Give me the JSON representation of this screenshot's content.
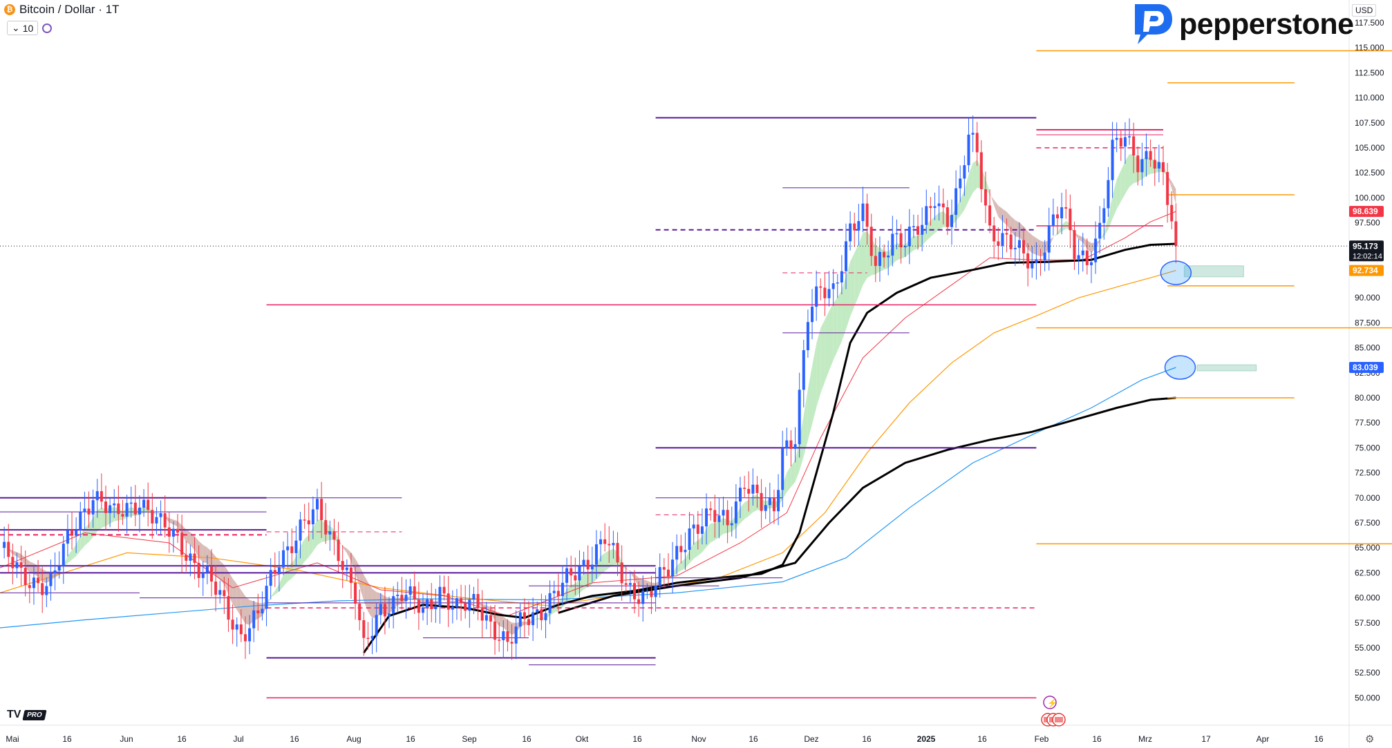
{
  "header": {
    "symbol": "Bitcoin / Dollar · 1T",
    "interval": "10",
    "currency": "USD"
  },
  "brand": {
    "name": "pepperstone",
    "tv_badge": "PRO"
  },
  "colors": {
    "up": "#2962ff",
    "down": "#f23645",
    "ema_fast": "#f23645",
    "ema_mid": "#ff9800",
    "ema_slow": "#2196f3",
    "ema_black": "#000000",
    "ribbon_bull": "#b9e7b9",
    "ribbon_bear": "#d4b0aa",
    "purple": "#5a189a",
    "magenta": "#e91e63",
    "orange": "#ff9800",
    "teal_box": "#cfe8e0"
  },
  "chart_data": {
    "type": "candlestick",
    "x_ticks": [
      "Mai",
      "16",
      "Jun",
      "16",
      "Jul",
      "16",
      "Aug",
      "16",
      "Sep",
      "16",
      "Okt",
      "16",
      "Nov",
      "16",
      "Dez",
      "16",
      "2025",
      "16",
      "Feb",
      "16",
      "Mrz",
      "17",
      "Apr",
      "16"
    ],
    "y_ticks": [
      "117.500",
      "115.000",
      "112.500",
      "110.000",
      "107.500",
      "105.000",
      "102.500",
      "100.000",
      "97.500",
      "95.000",
      "92.500",
      "90.000",
      "87.500",
      "85.000",
      "82.500",
      "80.000",
      "77.500",
      "75.000",
      "72.500",
      "70.000",
      "67.500",
      "65.000",
      "62.500",
      "60.000",
      "57.500",
      "55.000",
      "52.500",
      "50.000"
    ],
    "ylim": [
      48800,
      118800
    ],
    "price_labels": [
      {
        "value": 98639,
        "text": "98.639",
        "color": "#f23645"
      },
      {
        "value": 95173,
        "text": "95.173",
        "sub": "12:02:14",
        "color": "#131722"
      },
      {
        "value": 92734,
        "text": "92.734",
        "color": "#ff9800"
      },
      {
        "value": 83039,
        "text": "83.039",
        "color": "#2962ff"
      }
    ],
    "current_price": 95173,
    "key_points": [
      {
        "day": 0,
        "close": 65000
      },
      {
        "day": 5,
        "close": 62000
      },
      {
        "day": 12,
        "close": 61500
      },
      {
        "day": 18,
        "close": 67500
      },
      {
        "day": 22,
        "close": 70500
      },
      {
        "day": 27,
        "close": 68000
      },
      {
        "day": 33,
        "close": 70000
      },
      {
        "day": 38,
        "close": 67000
      },
      {
        "day": 42,
        "close": 66000
      },
      {
        "day": 47,
        "close": 63000
      },
      {
        "day": 52,
        "close": 60000
      },
      {
        "day": 57,
        "close": 56500
      },
      {
        "day": 61,
        "close": 58000
      },
      {
        "day": 66,
        "close": 64000
      },
      {
        "day": 71,
        "close": 67000
      },
      {
        "day": 75,
        "close": 68500
      },
      {
        "day": 80,
        "close": 65000
      },
      {
        "day": 84,
        "close": 60000
      },
      {
        "day": 86,
        "close": 54500
      },
      {
        "day": 90,
        "close": 59000
      },
      {
        "day": 95,
        "close": 60500
      },
      {
        "day": 100,
        "close": 58500
      },
      {
        "day": 104,
        "close": 61000
      },
      {
        "day": 108,
        "close": 58700
      },
      {
        "day": 113,
        "close": 59500
      },
      {
        "day": 117,
        "close": 57000
      },
      {
        "day": 120,
        "close": 55000
      },
      {
        "day": 124,
        "close": 58000
      },
      {
        "day": 128,
        "close": 59000
      },
      {
        "day": 133,
        "close": 61000
      },
      {
        "day": 138,
        "close": 63500
      },
      {
        "day": 143,
        "close": 66000
      },
      {
        "day": 148,
        "close": 61000
      },
      {
        "day": 153,
        "close": 60500
      },
      {
        "day": 158,
        "close": 62500
      },
      {
        "day": 163,
        "close": 67000
      },
      {
        "day": 168,
        "close": 68000
      },
      {
        "day": 172,
        "close": 67500
      },
      {
        "day": 176,
        "close": 72000
      },
      {
        "day": 180,
        "close": 69000
      },
      {
        "day": 183,
        "close": 68500
      },
      {
        "day": 185,
        "close": 75000
      },
      {
        "day": 188,
        "close": 76500
      },
      {
        "day": 191,
        "close": 88000
      },
      {
        "day": 194,
        "close": 90500
      },
      {
        "day": 197,
        "close": 91000
      },
      {
        "day": 201,
        "close": 97000
      },
      {
        "day": 204,
        "close": 98000
      },
      {
        "day": 207,
        "close": 93000
      },
      {
        "day": 211,
        "close": 96500
      },
      {
        "day": 214,
        "close": 95500
      },
      {
        "day": 218,
        "close": 97000
      },
      {
        "day": 221,
        "close": 100500
      },
      {
        "day": 224,
        "close": 98000
      },
      {
        "day": 227,
        "close": 101000
      },
      {
        "day": 229,
        "close": 106000
      },
      {
        "day": 231,
        "close": 104500
      },
      {
        "day": 234,
        "close": 97000
      },
      {
        "day": 238,
        "close": 95500
      },
      {
        "day": 242,
        "close": 94000
      },
      {
        "day": 245,
        "close": 93500
      },
      {
        "day": 248,
        "close": 97000
      },
      {
        "day": 251,
        "close": 99000
      },
      {
        "day": 254,
        "close": 94500
      },
      {
        "day": 257,
        "close": 94000
      },
      {
        "day": 260,
        "close": 97000
      },
      {
        "day": 263,
        "close": 104500
      },
      {
        "day": 266,
        "close": 106000
      },
      {
        "day": 269,
        "close": 104000
      },
      {
        "day": 272,
        "close": 104500
      },
      {
        "day": 275,
        "close": 101500
      },
      {
        "day": 277,
        "close": 97500
      },
      {
        "day": 278,
        "close": 95200
      }
    ],
    "ema_black_fast": [
      [
        86,
        54500
      ],
      [
        92,
        58200
      ],
      [
        100,
        59300
      ],
      [
        110,
        59000
      ],
      [
        118,
        58300
      ],
      [
        124,
        58000
      ],
      [
        132,
        59300
      ],
      [
        140,
        60200
      ],
      [
        150,
        60700
      ],
      [
        160,
        61500
      ],
      [
        170,
        62000
      ],
      [
        180,
        62400
      ],
      [
        185,
        63300
      ],
      [
        189,
        66500
      ],
      [
        193,
        72500
      ],
      [
        197,
        78500
      ],
      [
        201,
        85500
      ],
      [
        205,
        88500
      ],
      [
        212,
        90500
      ],
      [
        220,
        92000
      ],
      [
        230,
        92800
      ],
      [
        238,
        93500
      ],
      [
        248,
        93600
      ],
      [
        258,
        93800
      ],
      [
        266,
        94800
      ],
      [
        272,
        95300
      ],
      [
        278,
        95400
      ]
    ],
    "ema_black_slow": [
      [
        132,
        58500
      ],
      [
        145,
        60200
      ],
      [
        160,
        61200
      ],
      [
        175,
        62000
      ],
      [
        188,
        63500
      ],
      [
        196,
        67500
      ],
      [
        204,
        71000
      ],
      [
        214,
        73500
      ],
      [
        224,
        74800
      ],
      [
        234,
        75800
      ],
      [
        244,
        76600
      ],
      [
        254,
        77800
      ],
      [
        264,
        79000
      ],
      [
        272,
        79800
      ],
      [
        278,
        80000
      ]
    ],
    "ema_red": [
      [
        0,
        63000
      ],
      [
        20,
        66500
      ],
      [
        40,
        65500
      ],
      [
        55,
        61000
      ],
      [
        75,
        63500
      ],
      [
        90,
        60800
      ],
      [
        105,
        60200
      ],
      [
        120,
        58200
      ],
      [
        140,
        61500
      ],
      [
        160,
        62200
      ],
      [
        175,
        65500
      ],
      [
        186,
        68500
      ],
      [
        194,
        76000
      ],
      [
        204,
        84000
      ],
      [
        214,
        88000
      ],
      [
        224,
        91000
      ],
      [
        234,
        94000
      ],
      [
        244,
        93800
      ],
      [
        256,
        93800
      ],
      [
        266,
        96000
      ],
      [
        272,
        97600
      ],
      [
        278,
        98639
      ]
    ],
    "ema_orange": [
      [
        0,
        60500
      ],
      [
        30,
        64500
      ],
      [
        50,
        64000
      ],
      [
        70,
        62800
      ],
      [
        90,
        61000
      ],
      [
        110,
        60000
      ],
      [
        130,
        59200
      ],
      [
        150,
        60500
      ],
      [
        170,
        62000
      ],
      [
        185,
        64500
      ],
      [
        195,
        68500
      ],
      [
        205,
        74500
      ],
      [
        215,
        79500
      ],
      [
        225,
        83500
      ],
      [
        235,
        86500
      ],
      [
        245,
        88200
      ],
      [
        255,
        90000
      ],
      [
        265,
        91200
      ],
      [
        272,
        92000
      ],
      [
        278,
        92734
      ]
    ],
    "ema_blue": [
      [
        0,
        57000
      ],
      [
        20,
        57800
      ],
      [
        40,
        58500
      ],
      [
        60,
        59200
      ],
      [
        80,
        59700
      ],
      [
        100,
        59900
      ],
      [
        130,
        59800
      ],
      [
        160,
        60500
      ],
      [
        185,
        61600
      ],
      [
        200,
        64000
      ],
      [
        215,
        69000
      ],
      [
        230,
        73500
      ],
      [
        245,
        76500
      ],
      [
        258,
        79000
      ],
      [
        270,
        81800
      ],
      [
        278,
        83039
      ]
    ],
    "levels": [
      {
        "y": 108000,
        "x1": 155,
        "x2": 245,
        "color": "#5a189a",
        "w": 2
      },
      {
        "y": 101000,
        "x1": 185,
        "x2": 215,
        "color": "#5a189a",
        "w": 1
      },
      {
        "y": 86500,
        "x1": 185,
        "x2": 215,
        "color": "#5a189a",
        "w": 1
      },
      {
        "y": 96800,
        "x1": 155,
        "x2": 245,
        "color": "#5a189a",
        "w": 2,
        "dash": true
      },
      {
        "y": 92500,
        "x1": 185,
        "x2": 205,
        "color": "#e91e63",
        "w": 1,
        "dash": true
      },
      {
        "y": 89300,
        "x1": 63,
        "x2": 245,
        "color": "#e91e63",
        "w": 1.5
      },
      {
        "y": 75000,
        "x1": 155,
        "x2": 245,
        "color": "#5a189a",
        "w": 2
      },
      {
        "y": 70000,
        "x1": 155,
        "x2": 185,
        "color": "#5a189a",
        "w": 1
      },
      {
        "y": 68300,
        "x1": 155,
        "x2": 170,
        "color": "#e91e63",
        "w": 1,
        "dash": true
      },
      {
        "y": 70000,
        "x1": 0,
        "x2": 63,
        "color": "#5a189a",
        "w": 2
      },
      {
        "y": 68600,
        "x1": 0,
        "x2": 63,
        "color": "#5a189a",
        "w": 1
      },
      {
        "y": 66800,
        "x1": 0,
        "x2": 63,
        "color": "#5a189a",
        "w": 2
      },
      {
        "y": 66300,
        "x1": 0,
        "x2": 63,
        "color": "#e91e63",
        "w": 2,
        "dash": true
      },
      {
        "y": 62500,
        "x1": 0,
        "x2": 155,
        "color": "#5a189a",
        "w": 2
      },
      {
        "y": 63200,
        "x1": 0,
        "x2": 155,
        "color": "#5a189a",
        "w": 2
      },
      {
        "y": 60500,
        "x1": 0,
        "x2": 33,
        "color": "#5a189a",
        "w": 1
      },
      {
        "y": 60000,
        "x1": 33,
        "x2": 63,
        "color": "#5a189a",
        "w": 1
      },
      {
        "y": 70000,
        "x1": 63,
        "x2": 95,
        "color": "#5a189a",
        "w": 1
      },
      {
        "y": 66600,
        "x1": 63,
        "x2": 95,
        "color": "#e91e63",
        "w": 1,
        "dash": true
      },
      {
        "y": 59000,
        "x1": 63,
        "x2": 245,
        "color": "#e91e63",
        "w": 1.5,
        "dash": true
      },
      {
        "y": 59500,
        "x1": 63,
        "x2": 155,
        "color": "#5a189a",
        "w": 1
      },
      {
        "y": 56000,
        "x1": 100,
        "x2": 125,
        "color": "#5a189a",
        "w": 1
      },
      {
        "y": 54000,
        "x1": 63,
        "x2": 155,
        "color": "#5a189a",
        "w": 2
      },
      {
        "y": 53300,
        "x1": 125,
        "x2": 155,
        "color": "#5a189a",
        "w": 1
      },
      {
        "y": 61200,
        "x1": 125,
        "x2": 170,
        "color": "#5a189a",
        "w": 1
      },
      {
        "y": 62000,
        "x1": 155,
        "x2": 185,
        "color": "#5a189a",
        "w": 1
      },
      {
        "y": 50000,
        "x1": 63,
        "x2": 245,
        "color": "#e91e63",
        "w": 1.5
      },
      {
        "y": 114700,
        "x1": 245,
        "x2": 336,
        "color": "#ff9800",
        "w": 1.5
      },
      {
        "y": 111500,
        "x1": 276,
        "x2": 306,
        "color": "#ff9800",
        "w": 1.5
      },
      {
        "y": 106800,
        "x1": 245,
        "x2": 275,
        "color": "#e91e63",
        "w": 2
      },
      {
        "y": 106300,
        "x1": 245,
        "x2": 275,
        "color": "#e91e63",
        "w": 1
      },
      {
        "y": 105000,
        "x1": 245,
        "x2": 275,
        "color": "#e91e63",
        "w": 1.5,
        "dash": true
      },
      {
        "y": 100300,
        "x1": 276,
        "x2": 306,
        "color": "#ff9800",
        "w": 1.5
      },
      {
        "y": 97200,
        "x1": 245,
        "x2": 275,
        "color": "#e91e63",
        "w": 1.5
      },
      {
        "y": 91200,
        "x1": 276,
        "x2": 306,
        "color": "#ff9800",
        "w": 1.5
      },
      {
        "y": 87000,
        "x1": 245,
        "x2": 336,
        "color": "#ff9800",
        "w": 1.5
      },
      {
        "y": 80000,
        "x1": 276,
        "x2": 306,
        "color": "#ff9800",
        "w": 1.5
      },
      {
        "y": 65400,
        "x1": 245,
        "x2": 336,
        "color": "#ff9800",
        "w": 1.5
      }
    ],
    "circles": [
      {
        "day": 278,
        "value": 92500
      },
      {
        "day": 279,
        "value": 83039
      }
    ],
    "boxes": [
      {
        "x1": 280,
        "x2": 294,
        "y1": 92100,
        "y2": 93200
      },
      {
        "x1": 283,
        "x2": 297,
        "y1": 82700,
        "y2": 83300
      }
    ]
  }
}
